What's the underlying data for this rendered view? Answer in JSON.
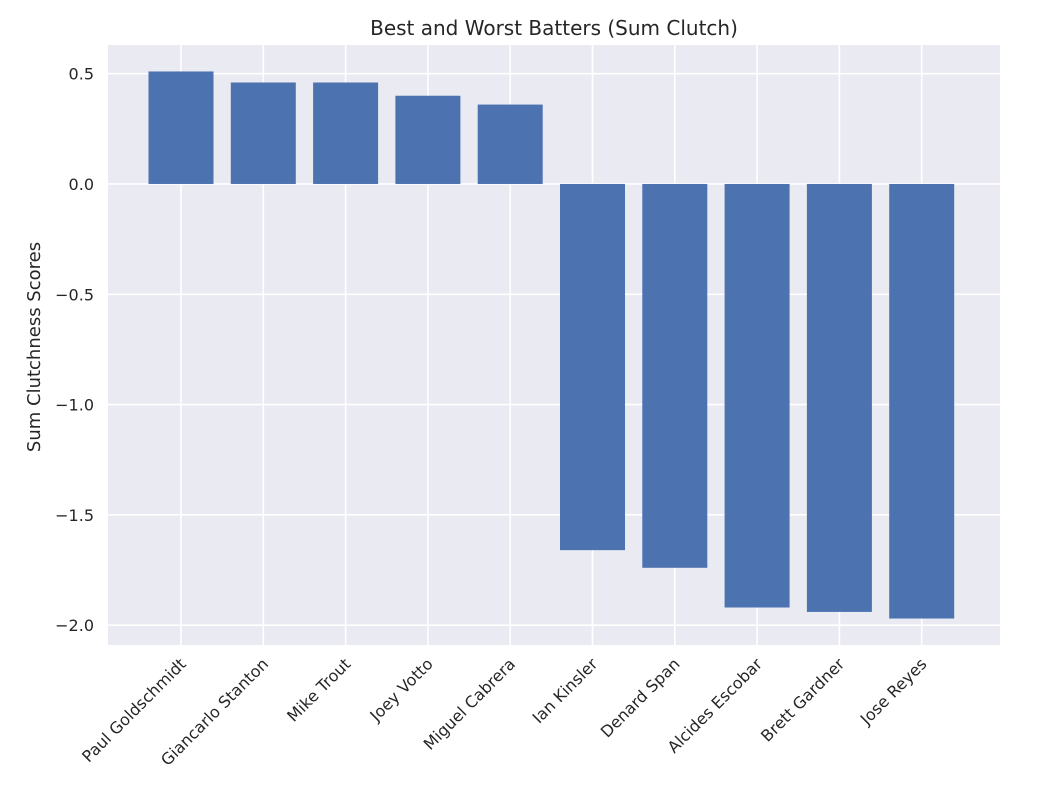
{
  "chart_data": {
    "type": "bar",
    "title": "Best and Worst Batters (Sum Clutch)",
    "xlabel": "",
    "ylabel": "Sum Clutchness Scores",
    "categories": [
      "Paul Goldschmidt",
      "Giancarlo Stanton",
      "Mike Trout",
      "Joey Votto",
      "Miguel Cabrera",
      "Ian Kinsler",
      "Denard Span",
      "Alcides Escobar",
      "Brett Gardner",
      "Jose Reyes"
    ],
    "values": [
      0.51,
      0.46,
      0.46,
      0.4,
      0.36,
      -1.66,
      -1.74,
      -1.92,
      -1.94,
      -1.97
    ],
    "yticks": [
      0.5,
      0.0,
      -0.5,
      -1.0,
      -1.5,
      -2.0
    ],
    "ytick_labels": [
      "0.5",
      "0.0",
      "−0.5",
      "−1.0",
      "−1.5",
      "−2.0"
    ],
    "ylim": [
      -2.09,
      0.63
    ],
    "grid": true,
    "legend": "none",
    "colors": {
      "bar": "#4c72b0",
      "plot_bg": "#eaeaf2",
      "grid": "#ffffff",
      "text": "#262626"
    }
  }
}
